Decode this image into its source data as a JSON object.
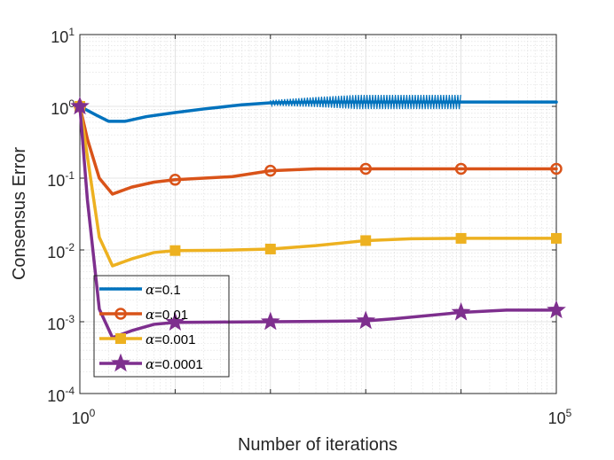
{
  "chart_data": {
    "type": "line",
    "title": "",
    "xlabel": "Number of iterations",
    "ylabel": "Consensus Error",
    "xscale": "log",
    "yscale": "log",
    "xlim": [
      1,
      100000
    ],
    "ylim": [
      0.0001,
      10
    ],
    "grid": true,
    "legend_position": "bottom-left",
    "x_ticks": [
      {
        "value": 1,
        "base": "10",
        "exp": "0"
      },
      {
        "value": 100000,
        "base": "10",
        "exp": "5"
      }
    ],
    "y_ticks": [
      {
        "value": 10,
        "base": "10",
        "exp": "1"
      },
      {
        "value": 1,
        "base": "10",
        "exp": "0"
      },
      {
        "value": 0.1,
        "base": "10",
        "exp": "-1"
      },
      {
        "value": 0.01,
        "base": "10",
        "exp": "-2"
      },
      {
        "value": 0.001,
        "base": "10",
        "exp": "-3"
      },
      {
        "value": 0.0001,
        "base": "10",
        "exp": "-4"
      }
    ],
    "series": [
      {
        "name": "α=0.1",
        "legend_symbol": "α",
        "legend_value": "=0.1",
        "color": "#0072BD",
        "marker": "none",
        "oscillating_range": [
          100,
          10000
        ],
        "x": [
          1,
          1.5,
          2,
          3,
          5,
          10,
          20,
          50,
          100,
          300,
          1000,
          3000,
          10000,
          20000,
          100000
        ],
        "y": [
          1.0,
          0.75,
          0.62,
          0.62,
          0.72,
          0.82,
          0.92,
          1.05,
          1.12,
          1.15,
          1.15,
          1.15,
          1.15,
          1.15,
          1.15
        ]
      },
      {
        "name": "α=0.01",
        "legend_symbol": "α",
        "legend_value": "=0.01",
        "color": "#D95319",
        "marker": "circle",
        "x": [
          1,
          1.2,
          1.6,
          2.2,
          3.5,
          6,
          10,
          20,
          40,
          100,
          300,
          1000,
          3000,
          10000,
          100000
        ],
        "y": [
          1.0,
          0.35,
          0.1,
          0.06,
          0.075,
          0.088,
          0.095,
          0.1,
          0.105,
          0.127,
          0.135,
          0.135,
          0.135,
          0.135,
          0.135
        ],
        "marker_x": [
          1,
          10,
          100,
          1000,
          10000,
          100000
        ],
        "marker_y": [
          1.0,
          0.095,
          0.127,
          0.135,
          0.135,
          0.135
        ]
      },
      {
        "name": "α=0.001",
        "legend_symbol": "α",
        "legend_value": "=0.001",
        "color": "#EDB120",
        "marker": "square",
        "x": [
          1,
          1.2,
          1.6,
          2.2,
          3.5,
          6,
          10,
          30,
          100,
          300,
          1000,
          3000,
          10000,
          100000
        ],
        "y": [
          1.0,
          0.2,
          0.015,
          0.006,
          0.0075,
          0.0092,
          0.0098,
          0.0099,
          0.0103,
          0.0115,
          0.0135,
          0.0143,
          0.0145,
          0.0145
        ],
        "marker_x": [
          1,
          10,
          100,
          1000,
          10000,
          100000
        ],
        "marker_y": [
          1.0,
          0.0098,
          0.0103,
          0.0135,
          0.0145,
          0.0145
        ]
      },
      {
        "name": "α=0.0001",
        "legend_symbol": "α",
        "legend_value": "=0.0001",
        "color": "#7E2F8E",
        "marker": "star",
        "x": [
          1,
          1.2,
          1.6,
          2.2,
          3.5,
          6,
          10,
          30,
          100,
          300,
          1000,
          2000,
          10000,
          30000,
          100000
        ],
        "y": [
          1.0,
          0.05,
          0.0015,
          0.0006,
          0.00075,
          0.00092,
          0.00098,
          0.00099,
          0.001,
          0.00101,
          0.00103,
          0.0011,
          0.00135,
          0.00145,
          0.00145
        ],
        "marker_x": [
          1,
          10,
          100,
          1000,
          10000,
          100000
        ],
        "marker_y": [
          1.0,
          0.00098,
          0.001,
          0.00103,
          0.00135,
          0.00145
        ]
      }
    ]
  }
}
